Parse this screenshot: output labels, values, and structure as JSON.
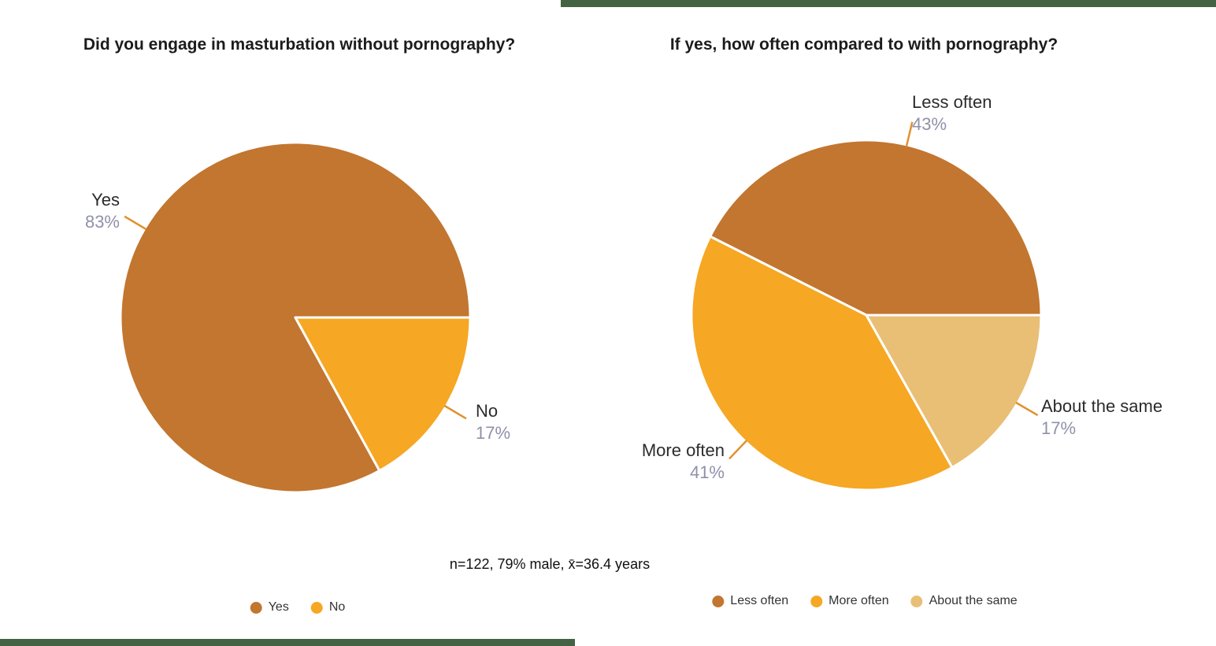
{
  "note": "n=122, 79% male, x̄=36.4 years",
  "accent": {
    "bar_color": "#446244",
    "leader_color": "#e0912f",
    "pct_color": "#8f91a9",
    "title_color": "#1c1c1c"
  },
  "chart_data": [
    {
      "type": "pie",
      "title": "Did you engage in masturbation without pornography?",
      "labels": [
        "Yes",
        "No"
      ],
      "values": [
        83,
        17
      ],
      "value_labels": [
        "83%",
        "17%"
      ],
      "colors": [
        "#c2762f",
        "#f6a723"
      ],
      "start_angle_deg": 0,
      "direction": "ccw",
      "legend": [
        "Yes",
        "No"
      ],
      "legend_position": "bottom"
    },
    {
      "type": "pie",
      "title": "If yes, how often compared to with pornography?",
      "labels": [
        "Less often",
        "More often",
        "About the same"
      ],
      "values": [
        43,
        41,
        17
      ],
      "value_labels": [
        "43%",
        "41%",
        "17%"
      ],
      "colors": [
        "#c2762f",
        "#f6a723",
        "#e8bf75"
      ],
      "start_angle_deg": 0,
      "direction": "ccw",
      "legend": [
        "Less often",
        "More often",
        "About the same"
      ],
      "legend_position": "bottom"
    }
  ]
}
